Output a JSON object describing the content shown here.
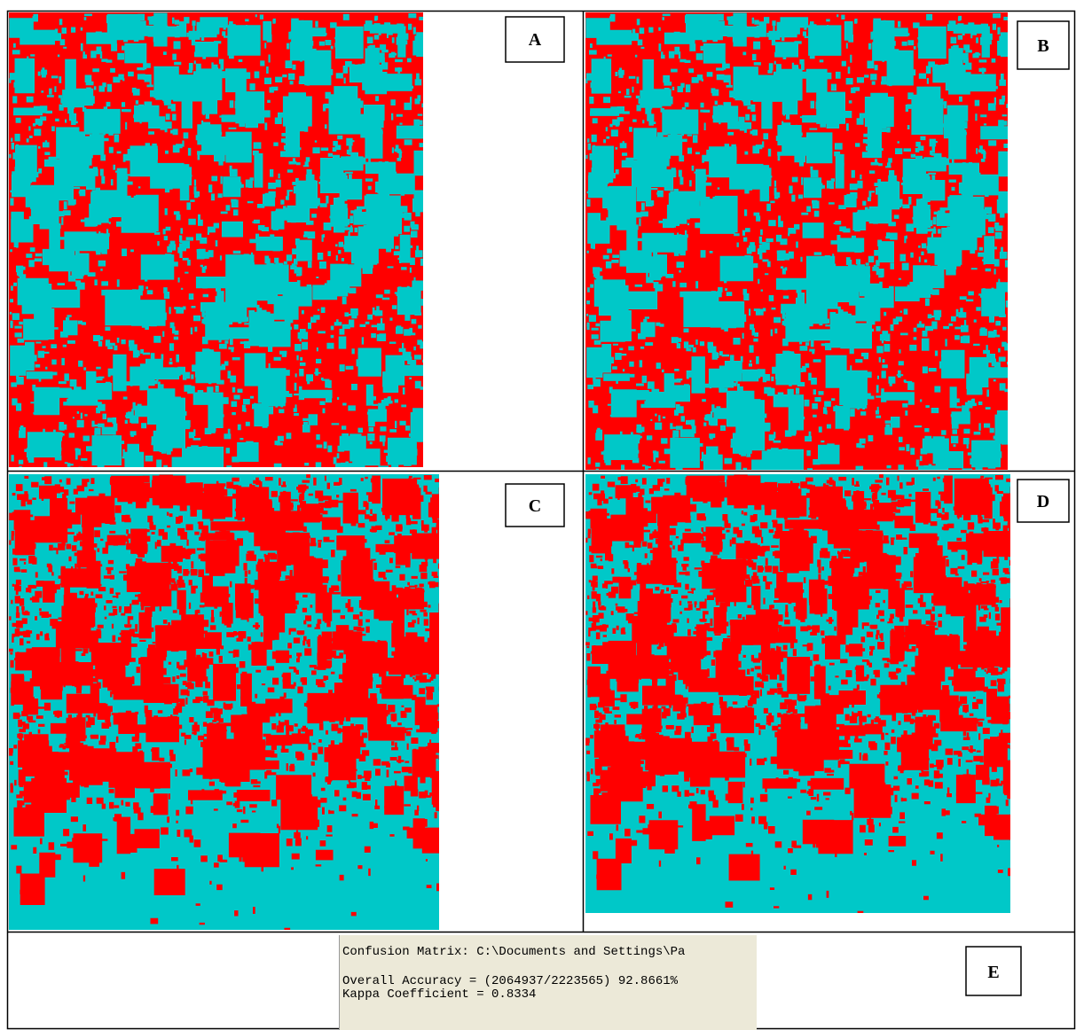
{
  "panels": [
    {
      "label": "A"
    },
    {
      "label": "B"
    },
    {
      "label": "C"
    },
    {
      "label": "D"
    },
    {
      "label": "E"
    }
  ],
  "screenshot": {
    "lines": [
      "Confusion Matrix: C:\\Documents and Settings\\Pa",
      "Overall Accuracy = (2064937/2223565)  92.8661%",
      "Kappa Coefficient = 0.8334"
    ]
  }
}
